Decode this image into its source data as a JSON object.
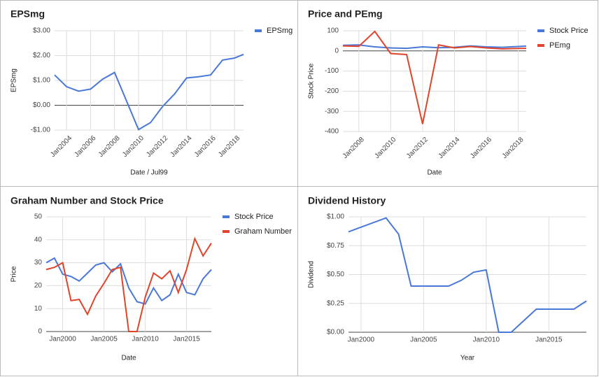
{
  "chart_data": [
    {
      "type": "line",
      "title": "EPSmg",
      "x_label": "Date / Jul99",
      "y_label": "EPSmg",
      "legend": "right",
      "rotate_x_labels": true,
      "grid": true,
      "x": [
        2003,
        2004,
        2005,
        2006,
        2007,
        2008,
        2010,
        2011,
        2012,
        2013,
        2014,
        2015,
        2016,
        2017,
        2018,
        2018.75
      ],
      "series": [
        {
          "name": "EPSmg",
          "color": "#4a78d8",
          "values": [
            1.22,
            0.75,
            0.57,
            0.65,
            1.05,
            1.32,
            -0.98,
            -0.7,
            -0.05,
            0.45,
            1.1,
            1.15,
            1.22,
            1.82,
            1.9,
            2.05
          ]
        }
      ],
      "xlim": [
        2003,
        2018.75
      ],
      "xticks": [
        {
          "value": 2004,
          "label": "Jan2004"
        },
        {
          "value": 2006,
          "label": "Jan2006"
        },
        {
          "value": 2008,
          "label": "Jan2008"
        },
        {
          "value": 2010,
          "label": "Jan2010"
        },
        {
          "value": 2012,
          "label": "Jan2012"
        },
        {
          "value": 2014,
          "label": "Jan2014"
        },
        {
          "value": 2016,
          "label": "Jan2016"
        },
        {
          "value": 2018,
          "label": "Jan2018"
        }
      ],
      "ylim": [
        -1,
        3
      ],
      "yticks": [
        {
          "value": -1,
          "label": "-$1.00"
        },
        {
          "value": 0,
          "label": "$0.00"
        },
        {
          "value": 1,
          "label": "$1.00"
        },
        {
          "value": 2,
          "label": "$2.00"
        },
        {
          "value": 3,
          "label": "$3.00"
        }
      ]
    },
    {
      "type": "line",
      "title": "Price and PEmg",
      "x_label": "Date",
      "y_label": "Stock Price",
      "legend": "right",
      "rotate_x_labels": true,
      "grid": true,
      "x": [
        2007,
        2008,
        2009,
        2010,
        2011,
        2012,
        2013,
        2014,
        2015,
        2016,
        2017,
        2018,
        2018.5
      ],
      "series": [
        {
          "name": "Stock Price",
          "color": "#4a78d8",
          "values": [
            28,
            30,
            20,
            15,
            13,
            20,
            16,
            18,
            25,
            20,
            18,
            22,
            24
          ]
        },
        {
          "name": "PEmg",
          "color": "#e0442b",
          "values": [
            25,
            23,
            97,
            -13,
            -18,
            -363,
            30,
            15,
            22,
            15,
            10,
            12,
            13
          ]
        }
      ],
      "xlim": [
        2007,
        2018.5
      ],
      "xticks": [
        {
          "value": 2008,
          "label": "Jan2008"
        },
        {
          "value": 2010,
          "label": "Jan2010"
        },
        {
          "value": 2012,
          "label": "Jan2012"
        },
        {
          "value": 2014,
          "label": "Jan2014"
        },
        {
          "value": 2016,
          "label": "Jan2016"
        },
        {
          "value": 2018,
          "label": "Jan2018"
        }
      ],
      "ylim": [
        -400,
        100
      ],
      "yticks": [
        -400,
        -300,
        -200,
        -100,
        0,
        100
      ]
    },
    {
      "type": "line",
      "title": "Graham Number and Stock Price",
      "x_label": "Date",
      "y_label": "Price",
      "legend": "right",
      "rotate_x_labels": false,
      "grid": true,
      "x": [
        1998,
        1999,
        2000,
        2001,
        2002,
        2003,
        2004,
        2005,
        2006,
        2007,
        2008,
        2009,
        2010,
        2011,
        2012,
        2013,
        2014,
        2015,
        2016,
        2017,
        2018
      ],
      "series": [
        {
          "name": "Stock Price",
          "color": "#4a78d8",
          "values": [
            30,
            32,
            25,
            24,
            22,
            25.5,
            29,
            30,
            26,
            29.5,
            19,
            13,
            12,
            19,
            13.5,
            16,
            25,
            17,
            16,
            23,
            27
          ]
        },
        {
          "name": "Graham Number",
          "color": "#e0442b",
          "values": [
            27,
            28,
            30,
            13.5,
            14,
            7.5,
            15.5,
            21,
            27,
            28,
            0,
            0,
            15,
            25.5,
            23,
            26.5,
            17,
            27,
            40.5,
            33,
            38.5
          ]
        }
      ],
      "xlim": [
        1998,
        2018
      ],
      "xticks": [
        {
          "value": 2000,
          "label": "Jan2000"
        },
        {
          "value": 2005,
          "label": "Jan2005"
        },
        {
          "value": 2010,
          "label": "Jan2010"
        },
        {
          "value": 2015,
          "label": "Jan2015"
        }
      ],
      "ylim": [
        0,
        50
      ],
      "yticks": [
        0,
        10,
        20,
        30,
        40,
        50
      ]
    },
    {
      "type": "line",
      "title": "Dividend History",
      "x_label": "Year",
      "y_label": "Dividend",
      "rotate_x_labels": false,
      "grid": true,
      "x": [
        1999,
        2002,
        2003,
        2004,
        2007,
        2008,
        2009,
        2010,
        2011,
        2012,
        2014,
        2017,
        2018
      ],
      "values": [
        0.87,
        0.99,
        0.85,
        0.4,
        0.4,
        0.45,
        0.52,
        0.54,
        0.0,
        0.0,
        0.2,
        0.2,
        0.27
      ],
      "color": "#4a78d8",
      "xlim": [
        1999,
        2018
      ],
      "xticks": [
        {
          "value": 2000,
          "label": "Jan2000"
        },
        {
          "value": 2005,
          "label": "Jan2005"
        },
        {
          "value": 2010,
          "label": "Jan2010"
        },
        {
          "value": 2015,
          "label": "Jan2015"
        }
      ],
      "ylim": [
        0,
        1
      ],
      "yticks": [
        {
          "value": 0,
          "label": "$0.00"
        },
        {
          "value": 0.25,
          "label": "$0.25"
        },
        {
          "value": 0.5,
          "label": "$0.50"
        },
        {
          "value": 0.75,
          "label": "$0.75"
        },
        {
          "value": 1,
          "label": "$1.00"
        }
      ]
    }
  ]
}
